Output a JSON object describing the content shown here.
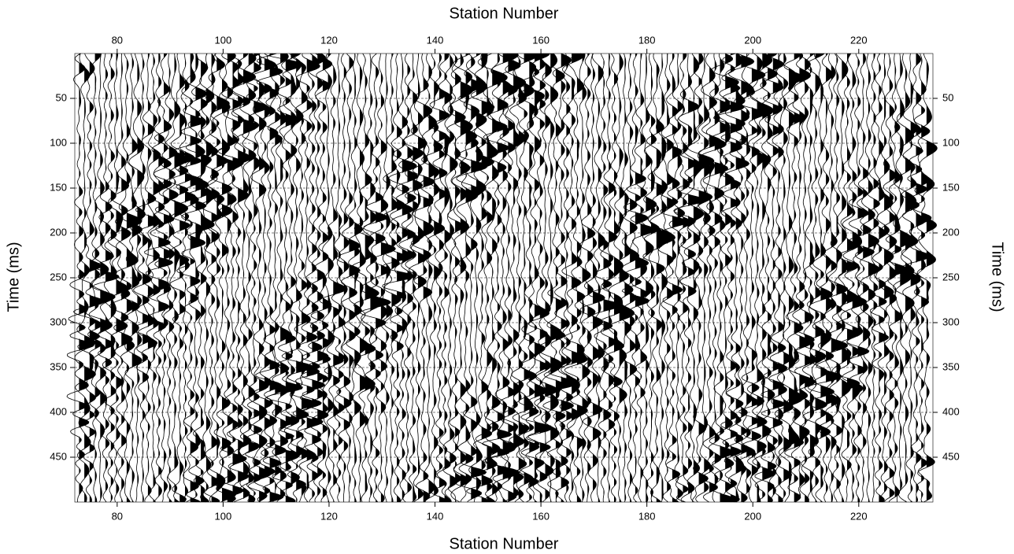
{
  "chart_data": {
    "type": "wiggle",
    "x_label": "Station Number",
    "y_label": "Time (ms)",
    "xlim": [
      72,
      234
    ],
    "xticks": [
      80,
      100,
      120,
      140,
      160,
      180,
      200,
      220
    ],
    "ylim": [
      0,
      500
    ],
    "yticks": [
      50,
      100,
      150,
      200,
      250,
      300,
      350,
      400,
      450
    ],
    "grid": true,
    "y_inverted": true,
    "color": "#000000"
  }
}
